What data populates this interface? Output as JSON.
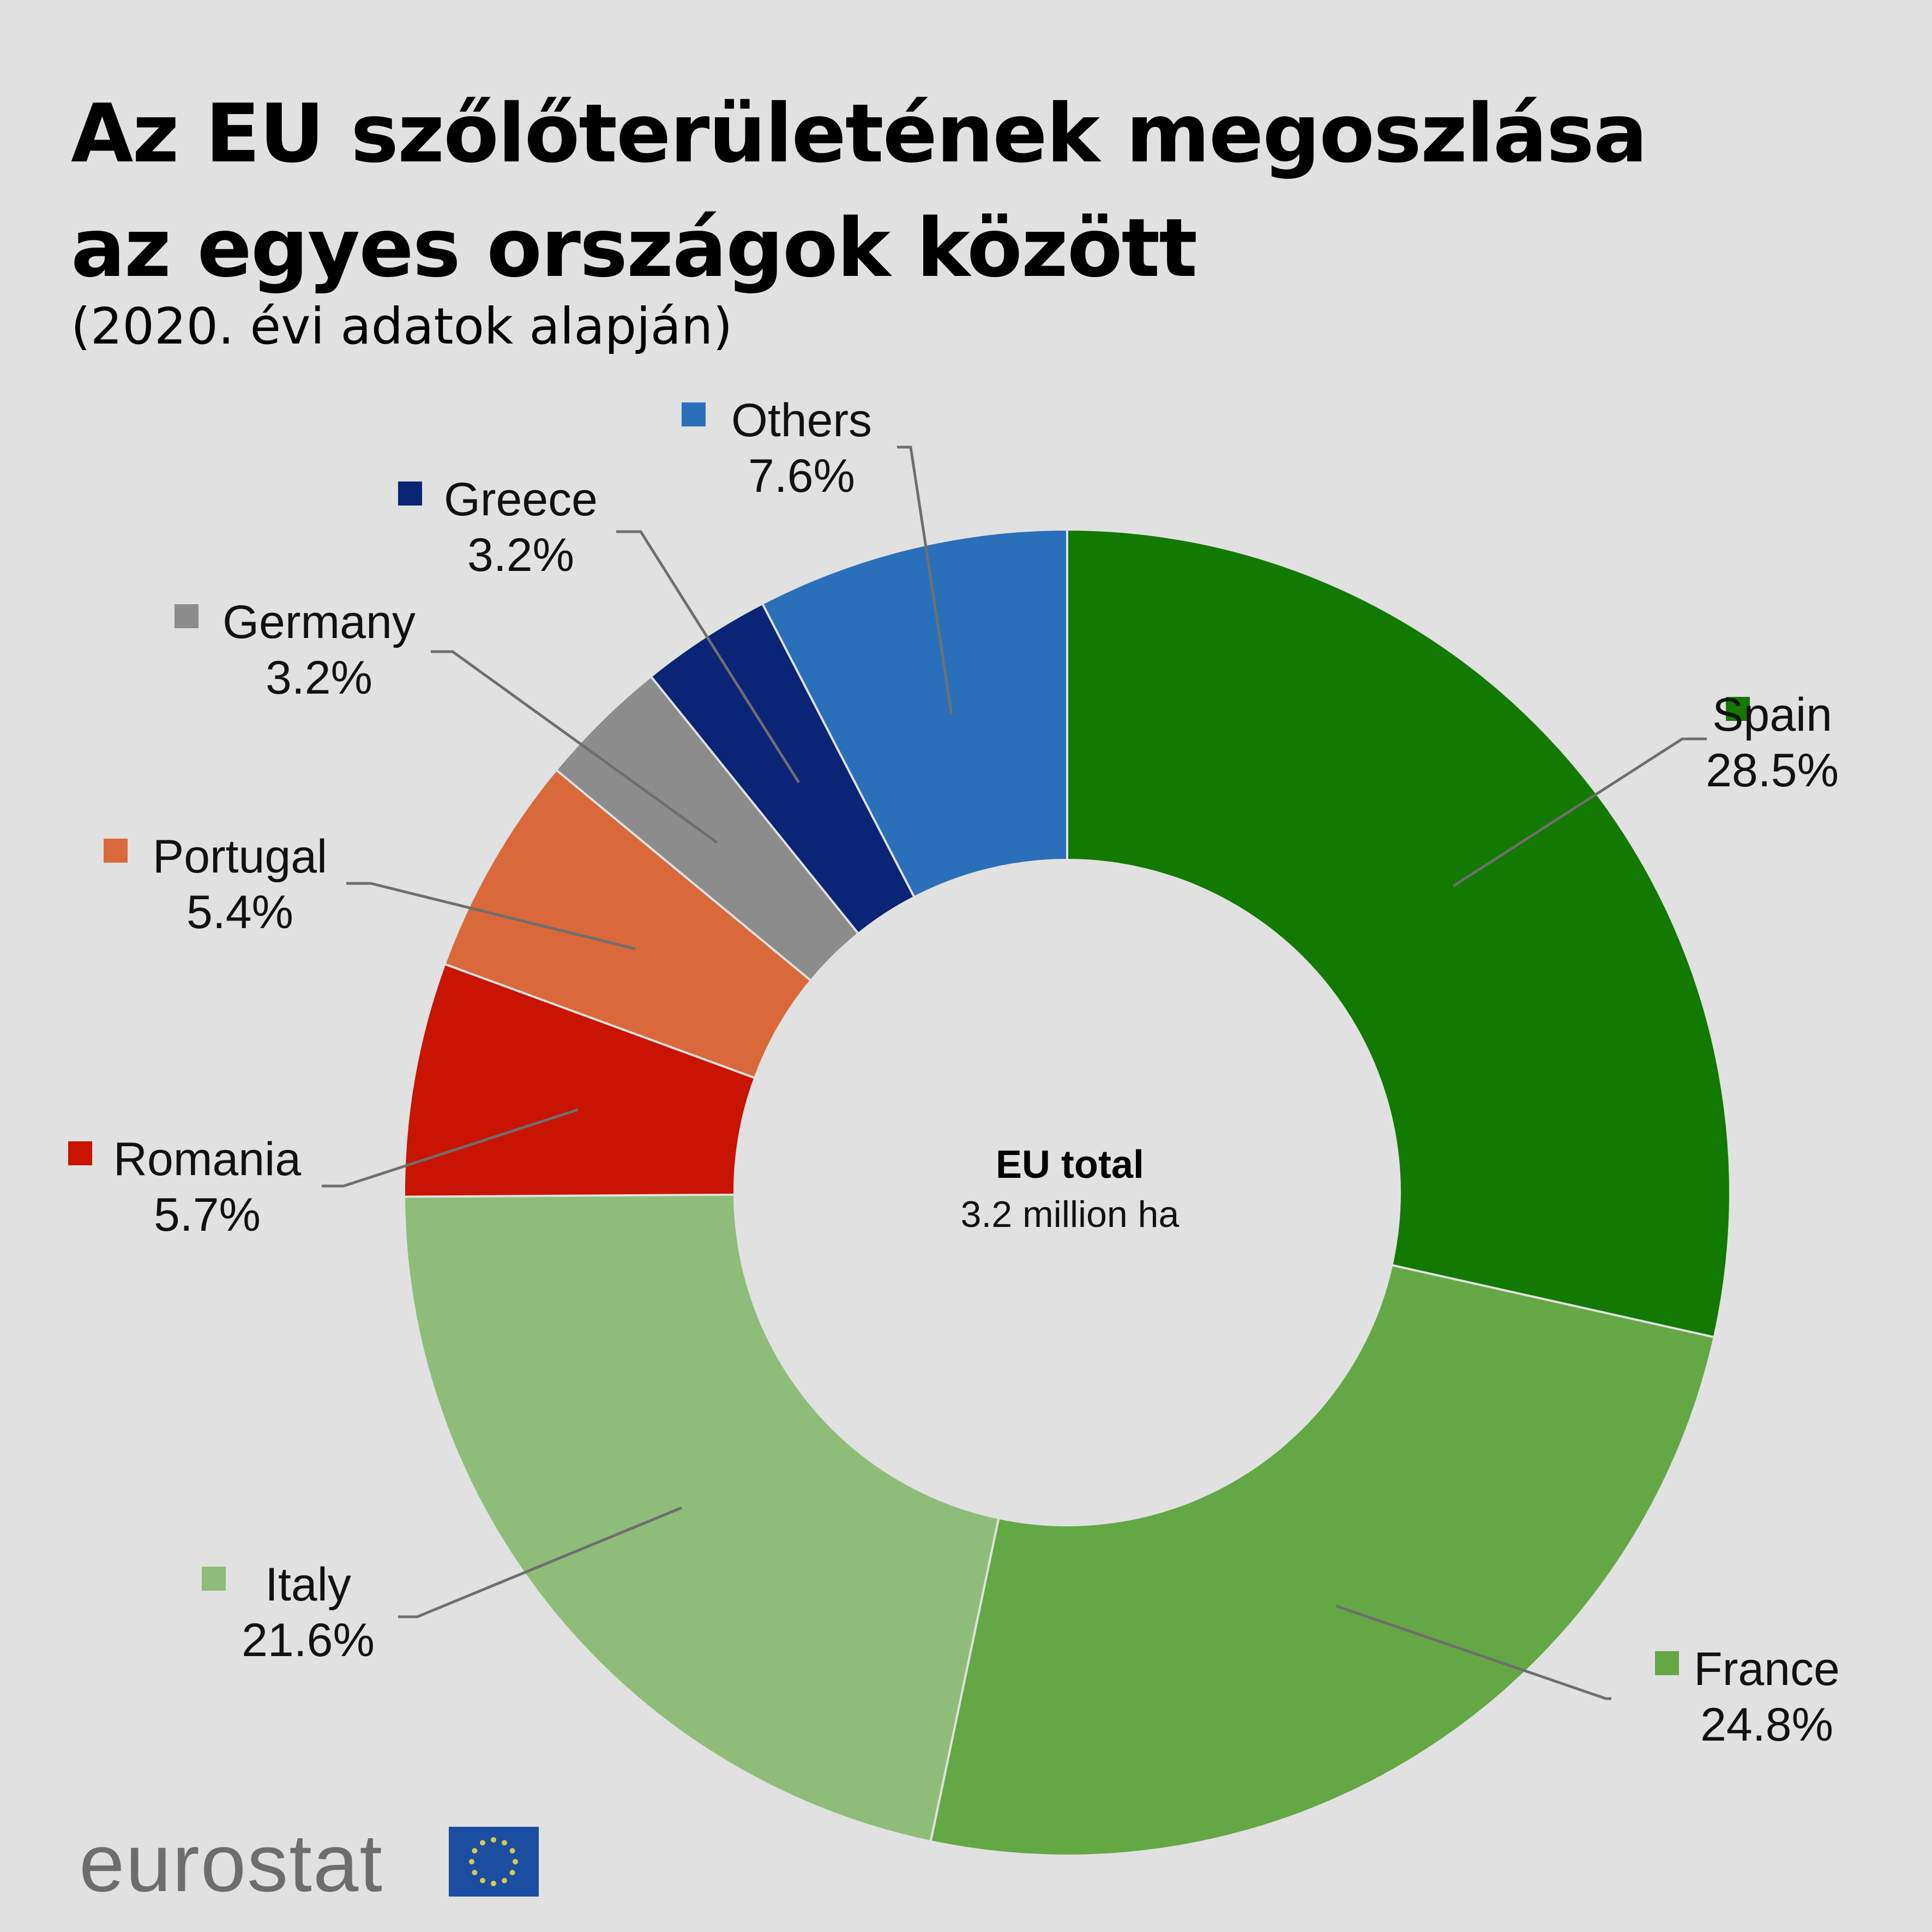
{
  "title_line1": "Az EU szőlőterületének megoszlása",
  "title_line2": "az egyes országok között",
  "subtitle": "(2020. évi adatok alapján)",
  "logo": {
    "text": "eurostat",
    "flag_icon": "eu-flag-icon"
  },
  "chart_data": {
    "type": "pie",
    "variant": "donut",
    "title": "Az EU szőlőterületének megoszlása az egyes országok között",
    "subtitle": "(2020. évi adatok alapján)",
    "center_label": {
      "title": "EU total",
      "value": "3.2 million ha"
    },
    "unit": "%",
    "slices": [
      {
        "label": "Spain",
        "value": 28.5,
        "display": "28.5%",
        "color": "#127a00"
      },
      {
        "label": "France",
        "value": 24.8,
        "display": "24.8%",
        "color": "#63a845"
      },
      {
        "label": "Italy",
        "value": 21.6,
        "display": "21.6%",
        "color": "#8dbd78"
      },
      {
        "label": "Romania",
        "value": 5.7,
        "display": "5.7%",
        "color": "#c81400"
      },
      {
        "label": "Portugal",
        "value": 5.4,
        "display": "5.4%",
        "color": "#d9693a"
      },
      {
        "label": "Germany",
        "value": 3.2,
        "display": "3.2%",
        "color": "#8c8c8c"
      },
      {
        "label": "Greece",
        "value": 3.2,
        "display": "3.2%",
        "color": "#0a2476"
      },
      {
        "label": "Others",
        "value": 7.6,
        "display": "7.6%",
        "color": "#2a6fba"
      }
    ]
  }
}
